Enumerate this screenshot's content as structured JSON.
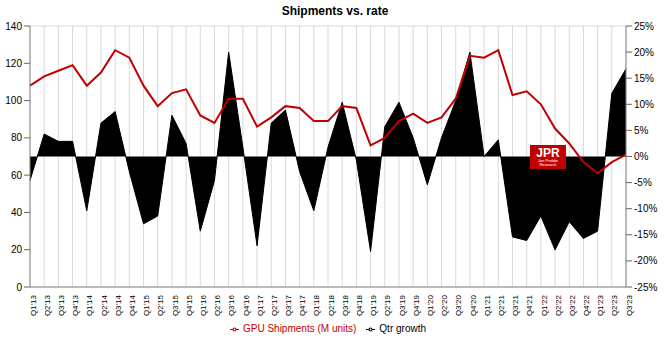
{
  "chart_data": {
    "type": "combo",
    "title": "Shipments vs. rate",
    "categories": [
      "Q1'13",
      "Q2'13",
      "Q3'13",
      "Q4'13",
      "Q1'14",
      "Q2'14",
      "Q3'14",
      "Q4'14",
      "Q1'15",
      "Q2'15",
      "Q3'15",
      "Q4'15",
      "Q1'16",
      "Q2'16",
      "Q3'16",
      "Q4'16",
      "Q1'17",
      "Q2'17",
      "Q3'17",
      "Q4'17",
      "Q1'18",
      "Q2'18",
      "Q3'18",
      "Q4'18",
      "Q1'19",
      "Q2'19",
      "Q3'19",
      "Q4'19",
      "Q1'20",
      "Q2'20",
      "Q3'20",
      "Q4'20",
      "Q1'21",
      "Q2'21",
      "Q3'21",
      "Q4'21",
      "Q1'22",
      "Q2'22",
      "Q3'22",
      "Q4'22",
      "Q1'23",
      "Q2'23",
      "Q3'23"
    ],
    "series": [
      {
        "name": "Qtr growth",
        "type": "area",
        "axis": "y2",
        "color": "#000000",
        "values": [
          -4.6,
          4.3,
          2.9,
          2.9,
          -10.4,
          6.4,
          8.6,
          -2.9,
          -12.9,
          -11.4,
          7.9,
          2.5,
          -14.3,
          -4.6,
          20,
          1.8,
          -17.1,
          6.4,
          8.9,
          -2.9,
          -10.4,
          1.8,
          10.4,
          -0.7,
          -18.2,
          5.7,
          10.4,
          3.6,
          -5.4,
          3.6,
          10.7,
          20,
          0,
          3.2,
          -15.4,
          -16.1,
          -11.4,
          -17.9,
          -12.5,
          -15.7,
          -14.3,
          12.1,
          16.8
        ]
      },
      {
        "name": "GPU Shipments (M units)",
        "type": "line",
        "color": "#c00000",
        "values": [
          108,
          113,
          116,
          119,
          108,
          115,
          127,
          123,
          108,
          97,
          104,
          106,
          92,
          88,
          101,
          101,
          86,
          91,
          97,
          96,
          89,
          89,
          97,
          96,
          76,
          80,
          89,
          93,
          88,
          91,
          101,
          124,
          123,
          127,
          103,
          105,
          98,
          85,
          77,
          67,
          61,
          67,
          71
        ]
      }
    ],
    "ylim": [
      0,
      140
    ],
    "yticks": [
      0,
      20,
      40,
      60,
      80,
      100,
      120,
      140
    ],
    "y2lim": [
      -25,
      25
    ],
    "y2ticks": [
      {
        "value": -25,
        "label": "-25%"
      },
      {
        "value": -20,
        "label": "-20%"
      },
      {
        "value": -15,
        "label": "-15%"
      },
      {
        "value": -10,
        "label": "-10%"
      },
      {
        "value": -5,
        "label": "-5%"
      },
      {
        "value": 0,
        "label": "0%"
      },
      {
        "value": 5,
        "label": "5%"
      },
      {
        "value": 10,
        "label": "10%"
      },
      {
        "value": 15,
        "label": "15%"
      },
      {
        "value": 20,
        "label": "20%"
      },
      {
        "value": 25,
        "label": "25%"
      }
    ],
    "grid": true,
    "legend": "bottom",
    "annotations": [
      "JPR",
      "Jon Peddie Research"
    ]
  }
}
